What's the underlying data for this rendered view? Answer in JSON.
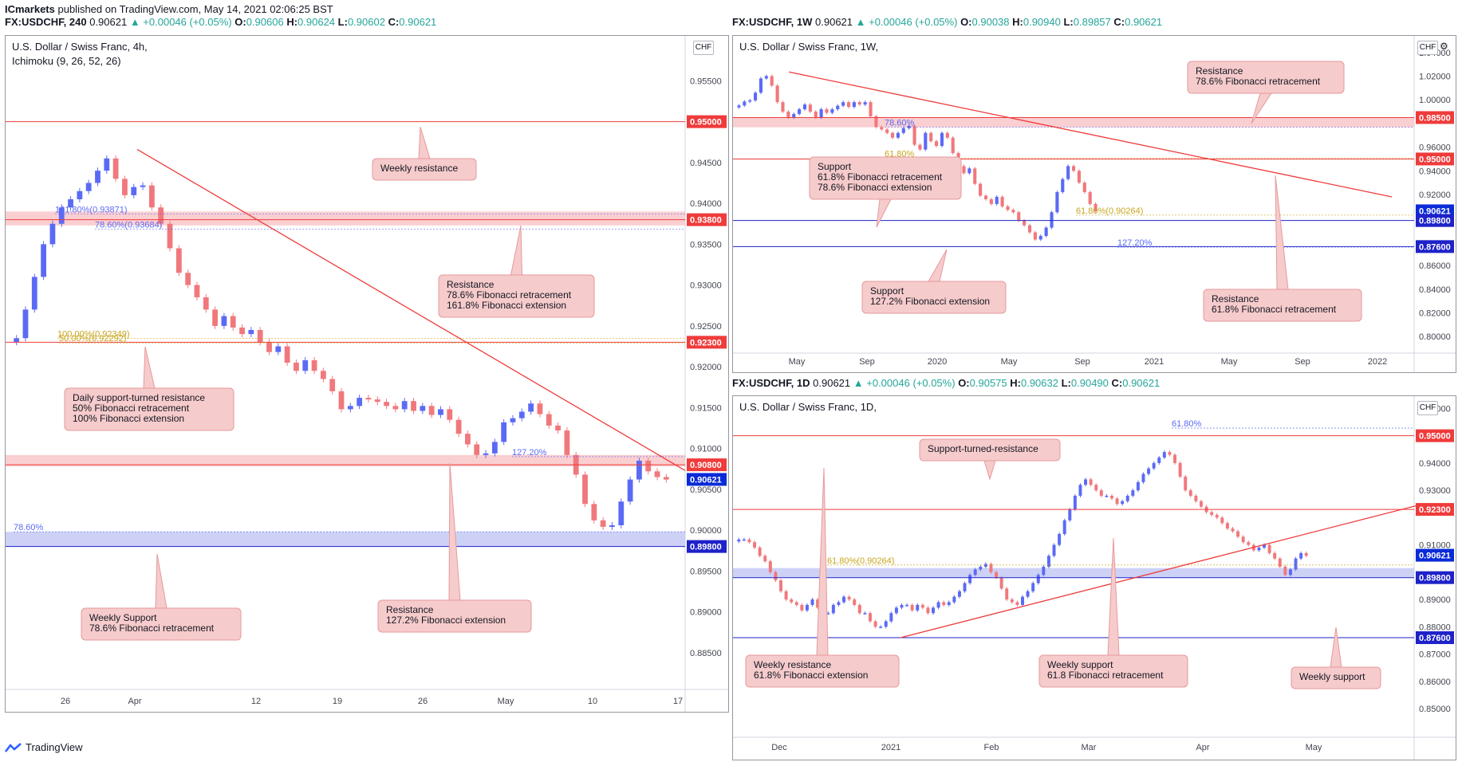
{
  "header": {
    "publisher": "ICmarkets",
    "published_text": " published on TradingView.com, May 14, 2021 02:06:25 BST"
  },
  "footer": {
    "brand": "TradingView"
  },
  "colors": {
    "up": "#5b6af5",
    "down": "#f0787c",
    "resistance": "#ef3b3b",
    "support": "#1e22c8",
    "zone_red": "#f9c7c9",
    "zone_blue": "#c5c9f5",
    "note_bg": "#f6cbcb",
    "note_border": "#e69a9c",
    "fib_gold": "#c8a51e",
    "fib_blue": "#5b6af5",
    "cloud": "#f8d2d4",
    "cloud_green": "#bfe5c3"
  },
  "icons": [
    "gear-icon",
    "tradingview-logo-icon"
  ],
  "charts": [
    {
      "id": "h4",
      "header_prefix": "FX:USDCHF, 240",
      "ohlc_display": {
        "change": "▲ +0.00046 (+0.05%)",
        "O": "0.90606",
        "H": "0.90624",
        "L": "0.90602",
        "C": "0.90621"
      },
      "title": "U.S. Dollar / Swiss Franc, 4h,",
      "indicator": "Ichimoku (9, 26, 52, 26)",
      "currency": "CHF",
      "x_labels": [
        "26",
        "Apr",
        "12",
        "19",
        "26",
        "May",
        "10",
        "17"
      ],
      "y_ticks": [
        "0.95500",
        "0.95000",
        "0.94500",
        "0.94000",
        "0.93500",
        "0.93000",
        "0.92500",
        "0.92000",
        "0.91500",
        "0.91000",
        "0.90500",
        "0.90000",
        "0.89500",
        "0.89000",
        "0.88500"
      ]
    },
    {
      "id": "w1",
      "header_prefix": "FX:USDCHF, 1W",
      "ohlc_display": {
        "change": "▲ +0.00046 (+0.05%)",
        "O": "0.90038",
        "H": "0.90940",
        "L": "0.89857",
        "C": "0.90621"
      },
      "title": "U.S. Dollar / Swiss Franc, 1W,",
      "currency": "CHF",
      "x_labels": [
        "May",
        "Sep",
        "2020",
        "May",
        "Sep",
        "2021",
        "May",
        "Sep",
        "2022"
      ],
      "y_ticks": [
        "1.04000",
        "1.02000",
        "1.00000",
        "0.96000",
        "0.94000",
        "0.92000",
        "0.86000",
        "0.84000",
        "0.82000",
        "0.80000"
      ]
    },
    {
      "id": "d1",
      "header_prefix": "FX:USDCHF, 1D",
      "ohlc_display": {
        "change": "▲ +0.00046 (+0.05%)",
        "O": "0.90575",
        "H": "0.90632",
        "L": "0.90490",
        "C": "0.90621"
      },
      "title": "U.S. Dollar / Swiss Franc, 1D,",
      "currency": "CHF",
      "x_labels": [
        "Dec",
        "2021",
        "Feb",
        "Mar",
        "Apr",
        "May"
      ],
      "y_ticks": [
        "0.96000",
        "0.94000",
        "0.93000",
        "0.91000",
        "0.89000",
        "0.88000",
        "0.87000",
        "0.86000",
        "0.85000"
      ]
    }
  ],
  "chart_data": [
    {
      "type": "candlestick",
      "title": "U.S. Dollar / Swiss Franc, 4h,",
      "ylim": [
        0.8805,
        0.9605
      ],
      "price_lines": [
        {
          "price": 0.95,
          "label": "0.95000",
          "kind": "resistance"
        },
        {
          "price": 0.938,
          "label": "0.93800",
          "kind": "resistance",
          "zone": [
            0.9373,
            0.939
          ]
        },
        {
          "price": 0.923,
          "label": "0.92300",
          "kind": "resistance"
        },
        {
          "price": 0.908,
          "label": "0.90800",
          "kind": "resistance",
          "zone": [
            0.9078,
            0.9092
          ]
        },
        {
          "price": 0.90621,
          "label": "0.90621",
          "kind": "current"
        },
        {
          "price": 0.898,
          "label": "0.89800",
          "kind": "support",
          "zone": [
            0.898,
            0.8998
          ]
        }
      ],
      "fib_labels": [
        {
          "text": "161.80%(0.93871)",
          "price": 0.93871,
          "color": "blue"
        },
        {
          "text": "78.60%(0.93684)",
          "price": 0.93684,
          "color": "blue"
        },
        {
          "text": "100.00%(0.92349)",
          "price": 0.92349,
          "color": "gold"
        },
        {
          "text": "50.00%(0.92292)",
          "price": 0.92292,
          "color": "gold"
        },
        {
          "text": "127.20%",
          "price": 0.909,
          "color": "blue"
        },
        {
          "text": "78.60%",
          "price": 0.8998,
          "color": "blue"
        }
      ],
      "trendline": [
        [
          0,
          0.9466
        ],
        [
          1,
          0.9073
        ]
      ],
      "annotations": [
        [
          "Weekly resistance"
        ],
        [
          "Resistance",
          "78.6% Fibonacci retracement",
          "161.8% Fibonacci extension"
        ],
        [
          "Daily support-turned resistance",
          "50% Fibonacci retracement",
          "100% Fibonacci extension"
        ],
        [
          "Resistance",
          "127.2% Fibonacci extension"
        ],
        [
          "Weekly Support",
          "78.6% Fibonacci retracement"
        ]
      ],
      "close_path": [
        0.9235,
        0.927,
        0.931,
        0.935,
        0.9375,
        0.9395,
        0.9405,
        0.9415,
        0.9425,
        0.944,
        0.9455,
        0.943,
        0.941,
        0.942,
        0.9422,
        0.9395,
        0.9375,
        0.9345,
        0.9315,
        0.93,
        0.9285,
        0.927,
        0.925,
        0.9262,
        0.9248,
        0.924,
        0.9245,
        0.923,
        0.9218,
        0.9225,
        0.9205,
        0.9195,
        0.9208,
        0.9195,
        0.9185,
        0.917,
        0.9148,
        0.9152,
        0.9162,
        0.916,
        0.9157,
        0.9152,
        0.9148,
        0.9158,
        0.9146,
        0.9152,
        0.9141,
        0.9148,
        0.9135,
        0.9118,
        0.9105,
        0.9092,
        0.9094,
        0.9108,
        0.9132,
        0.9137,
        0.9145,
        0.9155,
        0.9142,
        0.9128,
        0.9122,
        0.9092,
        0.9068,
        0.9032,
        0.9012,
        0.9004,
        0.9006,
        0.9035,
        0.9062,
        0.9085,
        0.9072,
        0.9065,
        0.9062
      ]
    },
    {
      "type": "candlestick",
      "title": "U.S. Dollar / Swiss Franc, 1W,",
      "ylim": [
        0.786,
        1.054
      ],
      "price_lines": [
        {
          "price": 0.985,
          "label": "0.98500",
          "kind": "resistance",
          "zone": [
            0.9768,
            0.985
          ]
        },
        {
          "price": 0.95,
          "label": "0.95000",
          "kind": "resistance"
        },
        {
          "price": 0.90621,
          "label": "0.90621",
          "kind": "current"
        },
        {
          "price": 0.898,
          "label": "0.89800",
          "kind": "support"
        },
        {
          "price": 0.876,
          "label": "0.87600",
          "kind": "support"
        }
      ],
      "fib_labels": [
        {
          "text": "78.60%",
          "price": 0.9768,
          "color": "blue"
        },
        {
          "text": "61.80%",
          "price": 0.9508,
          "color": "gold"
        },
        {
          "text": "61.80%(0.90264)",
          "price": 0.9026,
          "color": "gold"
        },
        {
          "text": "127.20%",
          "price": 0.8755,
          "color": "blue"
        }
      ],
      "trendline": [
        [
          0,
          1.0235
        ],
        [
          1,
          0.918
        ]
      ],
      "annotations": [
        [
          "Resistance",
          "78.6% Fibonacci retracement"
        ],
        [
          "Support",
          "61.8% Fibonacci retracement",
          "78.6% Fibonacci extension"
        ],
        [
          "Support",
          "127.2% Fibonacci extension"
        ],
        [
          "Resistance",
          "61.8% Fibonacci retracement"
        ]
      ],
      "close_path": [
        0.9952,
        0.9985,
        0.9995,
        1.006,
        1.018,
        1.02,
        1.012,
        0.998,
        0.99,
        0.985,
        0.988,
        0.992,
        0.996,
        0.99,
        0.985,
        0.992,
        0.989,
        0.992,
        0.995,
        0.998,
        0.994,
        0.998,
        0.996,
        0.998,
        0.986,
        0.977,
        0.975,
        0.972,
        0.968,
        0.972,
        0.976,
        0.978,
        0.962,
        0.958,
        0.972,
        0.965,
        0.961,
        0.972,
        0.968,
        0.955,
        0.944,
        0.938,
        0.942,
        0.929,
        0.919,
        0.916,
        0.912,
        0.918,
        0.91,
        0.907,
        0.905,
        0.898,
        0.894,
        0.888,
        0.882,
        0.885,
        0.892,
        0.905,
        0.922,
        0.933,
        0.944,
        0.94,
        0.93,
        0.922,
        0.912,
        0.906
      ]
    },
    {
      "type": "candlestick",
      "title": "U.S. Dollar / Swiss Franc, 1D,",
      "ylim": [
        0.8395,
        0.9645
      ],
      "price_lines": [
        {
          "price": 0.95,
          "label": "0.95000",
          "kind": "resistance"
        },
        {
          "price": 0.923,
          "label": "0.92300",
          "kind": "resistance"
        },
        {
          "price": 0.90621,
          "label": "0.90621",
          "kind": "current"
        },
        {
          "price": 0.898,
          "label": "0.89800",
          "kind": "support",
          "zone": [
            0.898,
            0.9015
          ]
        },
        {
          "price": 0.876,
          "label": "0.87600",
          "kind": "support"
        }
      ],
      "fib_labels": [
        {
          "text": "61.80%",
          "price": 0.9528,
          "color": "blue"
        },
        {
          "text": "61.80%(0.90264)",
          "price": 0.90264,
          "color": "gold"
        }
      ],
      "trendline": [
        [
          0,
          0.876
        ],
        [
          1,
          0.9243
        ]
      ],
      "annotations": [
        [
          "Support-turned-resistance"
        ],
        [
          "Weekly resistance",
          "61.8% Fibonacci extension"
        ],
        [
          "Weekly support",
          "61.8 Fibonacci retracement"
        ],
        [
          "Weekly support"
        ]
      ],
      "close_path": [
        0.912,
        0.912,
        0.911,
        0.909,
        0.906,
        0.904,
        0.9,
        0.897,
        0.893,
        0.89,
        0.889,
        0.888,
        0.886,
        0.888,
        0.89,
        0.887,
        0.885,
        0.885,
        0.888,
        0.889,
        0.891,
        0.89,
        0.888,
        0.885,
        0.885,
        0.882,
        0.88,
        0.88,
        0.882,
        0.885,
        0.887,
        0.888,
        0.888,
        0.886,
        0.888,
        0.887,
        0.885,
        0.887,
        0.889,
        0.888,
        0.889,
        0.891,
        0.893,
        0.896,
        0.899,
        0.901,
        0.902,
        0.903,
        0.9,
        0.898,
        0.894,
        0.89,
        0.889,
        0.888,
        0.891,
        0.893,
        0.896,
        0.899,
        0.902,
        0.906,
        0.91,
        0.914,
        0.919,
        0.923,
        0.928,
        0.932,
        0.934,
        0.932,
        0.93,
        0.928,
        0.928,
        0.927,
        0.925,
        0.926,
        0.928,
        0.93,
        0.933,
        0.936,
        0.938,
        0.94,
        0.942,
        0.944,
        0.943,
        0.94,
        0.935,
        0.93,
        0.928,
        0.926,
        0.924,
        0.922,
        0.921,
        0.92,
        0.918,
        0.916,
        0.915,
        0.913,
        0.911,
        0.91,
        0.908,
        0.909,
        0.91,
        0.907,
        0.905,
        0.902,
        0.899,
        0.901,
        0.905,
        0.907,
        0.906
      ]
    }
  ]
}
